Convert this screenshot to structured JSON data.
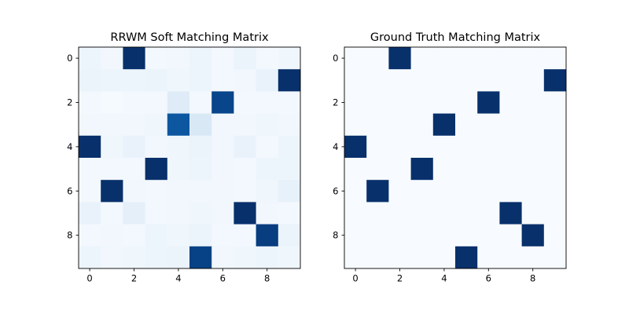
{
  "chart_data": [
    {
      "type": "heatmap",
      "title": "RRWM Soft Matching Matrix",
      "colormap": "Blues",
      "vmin": 0,
      "vmax": 1,
      "xticks": [
        0,
        2,
        4,
        6,
        8
      ],
      "yticks": [
        0,
        2,
        4,
        6,
        8
      ],
      "values": [
        [
          0.05,
          0.03,
          1.0,
          0.02,
          0.03,
          0.05,
          0.02,
          0.06,
          0.02,
          0.04
        ],
        [
          0.06,
          0.05,
          0.05,
          0.06,
          0.04,
          0.05,
          0.02,
          0.03,
          0.07,
          1.0
        ],
        [
          0.02,
          0.01,
          0.02,
          0.02,
          0.12,
          0.02,
          0.92,
          0.02,
          0.02,
          0.02
        ],
        [
          0.03,
          0.03,
          0.03,
          0.04,
          0.85,
          0.15,
          0.03,
          0.03,
          0.04,
          0.03
        ],
        [
          1.0,
          0.04,
          0.07,
          0.03,
          0.04,
          0.06,
          0.03,
          0.07,
          0.02,
          0.05
        ],
        [
          0.02,
          0.02,
          0.02,
          1.0,
          0.04,
          0.05,
          0.03,
          0.02,
          0.05,
          0.05
        ],
        [
          0.02,
          1.0,
          0.03,
          0.02,
          0.03,
          0.03,
          0.03,
          0.02,
          0.04,
          0.08
        ],
        [
          0.07,
          0.02,
          0.09,
          0.02,
          0.03,
          0.04,
          0.03,
          1.0,
          0.03,
          0.02
        ],
        [
          0.02,
          0.03,
          0.02,
          0.05,
          0.04,
          0.06,
          0.02,
          0.02,
          0.95,
          0.06
        ],
        [
          0.05,
          0.03,
          0.04,
          0.05,
          0.06,
          0.93,
          0.03,
          0.04,
          0.05,
          0.04
        ]
      ]
    },
    {
      "type": "heatmap",
      "title": "Ground Truth Matching Matrix",
      "colormap": "Blues",
      "vmin": 0,
      "vmax": 1,
      "xticks": [
        0,
        2,
        4,
        6,
        8
      ],
      "yticks": [
        0,
        2,
        4,
        6,
        8
      ],
      "values": [
        [
          0,
          0,
          1,
          0,
          0,
          0,
          0,
          0,
          0,
          0
        ],
        [
          0,
          0,
          0,
          0,
          0,
          0,
          0,
          0,
          0,
          1
        ],
        [
          0,
          0,
          0,
          0,
          0,
          0,
          1,
          0,
          0,
          0
        ],
        [
          0,
          0,
          0,
          0,
          1,
          0,
          0,
          0,
          0,
          0
        ],
        [
          1,
          0,
          0,
          0,
          0,
          0,
          0,
          0,
          0,
          0
        ],
        [
          0,
          0,
          0,
          1,
          0,
          0,
          0,
          0,
          0,
          0
        ],
        [
          0,
          1,
          0,
          0,
          0,
          0,
          0,
          0,
          0,
          0
        ],
        [
          0,
          0,
          0,
          0,
          0,
          0,
          0,
          1,
          0,
          0
        ],
        [
          0,
          0,
          0,
          0,
          0,
          0,
          0,
          0,
          1,
          0
        ],
        [
          0,
          0,
          0,
          0,
          0,
          1,
          0,
          0,
          0,
          0
        ]
      ]
    }
  ]
}
